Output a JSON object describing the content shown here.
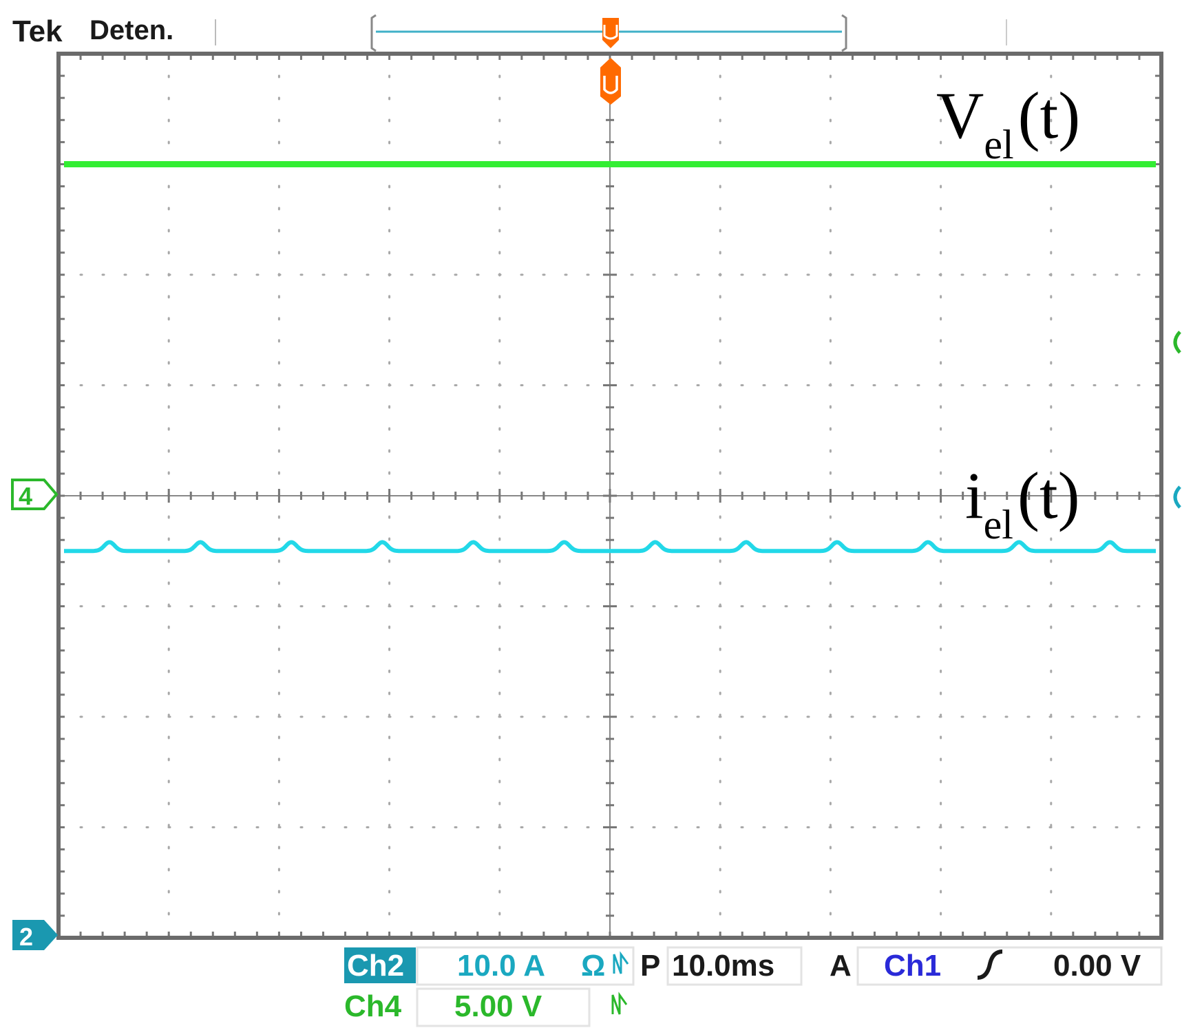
{
  "chart_data": {
    "type": "line",
    "header": {
      "brand": "Tek",
      "status": "Deten."
    },
    "x_divisions": 10,
    "y_divisions": 8,
    "ylim_div": [
      -4,
      4
    ],
    "xlim_div": [
      -5,
      5
    ],
    "grid": true,
    "series": [
      {
        "name": "V",
        "subscript": "el",
        "suffix": "(t)",
        "color": "#33ee33",
        "channel": "Ch4",
        "level_div": 3.0,
        "ripple_div": 0.0
      },
      {
        "name": "i",
        "subscript": "el",
        "suffix": "(t)",
        "color": "#22d8e8",
        "channel": "Ch2",
        "level_div": -0.5,
        "ripple_div": 0.08,
        "ripple_period_div": 0.833
      }
    ],
    "markers": {
      "ch4": "4",
      "ch2": "2"
    },
    "readout": {
      "ch2_label": "Ch2",
      "ch2_scale": "10.0 A",
      "ch2_extra": "Ω",
      "ch4_label": "Ch4",
      "ch4_scale": "5.00 V",
      "timebase_prefix": "P",
      "timebase": "10.0ms",
      "trigger_prefix": "A",
      "trigger_source": "Ch1",
      "trigger_level": "0.00 V"
    },
    "colors": {
      "ch1": "#2a2ad8",
      "ch2": "#1aa8c0",
      "ch4": "#2bb82b",
      "trigger": "#ff6a00",
      "frame": "#6b6b6b"
    }
  }
}
